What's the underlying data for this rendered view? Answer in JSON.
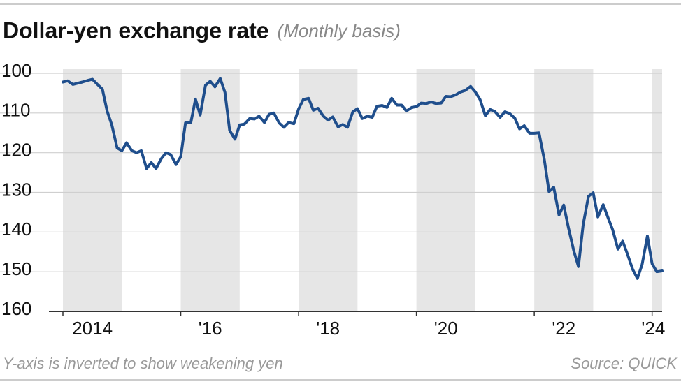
{
  "chart_data": {
    "type": "line",
    "title": "Dollar-yen exchange rate",
    "subtitle": "(Monthly basis)",
    "note": "Y-axis is inverted to show weakening yen",
    "source": "Source: QUICK",
    "color": "#1f4e8c",
    "inverted_y": true,
    "grid": true,
    "band_color": "#e6e6e6",
    "shaded_years": [
      [
        2014,
        2015
      ],
      [
        2016,
        2017
      ],
      [
        2018,
        2019
      ],
      [
        2020,
        2021
      ],
      [
        2022,
        2023
      ],
      [
        2024,
        2025
      ]
    ],
    "xlim": [
      2014,
      2024.17
    ],
    "ylim": [
      100,
      160
    ],
    "yticks": [
      100,
      110,
      120,
      130,
      140,
      150,
      160
    ],
    "xticks": [
      {
        "value": 2014.5,
        "label": "2014"
      },
      {
        "value": 2016.5,
        "label": "'16"
      },
      {
        "value": 2018.5,
        "label": "'18"
      },
      {
        "value": 2020.5,
        "label": "'20"
      },
      {
        "value": 2022.5,
        "label": "'22"
      },
      {
        "value": 2024.02,
        "label": "'24"
      }
    ],
    "x": [
      2014,
      2014.08,
      2014.17,
      2014.25,
      2014.33,
      2014.42,
      2014.5,
      2014.58,
      2014.67,
      2014.75,
      2014.83,
      2014.92,
      2015,
      2015.08,
      2015.17,
      2015.25,
      2015.33,
      2015.42,
      2015.5,
      2015.58,
      2015.67,
      2015.75,
      2015.83,
      2015.92,
      2016,
      2016.08,
      2016.17,
      2016.25,
      2016.33,
      2016.42,
      2016.5,
      2016.58,
      2016.67,
      2016.75,
      2016.83,
      2016.92,
      2017,
      2017.08,
      2017.17,
      2017.25,
      2017.33,
      2017.42,
      2017.5,
      2017.58,
      2017.67,
      2017.75,
      2017.83,
      2017.92,
      2018,
      2018.08,
      2018.17,
      2018.25,
      2018.33,
      2018.42,
      2018.5,
      2018.58,
      2018.67,
      2018.75,
      2018.83,
      2018.92,
      2019,
      2019.08,
      2019.17,
      2019.25,
      2019.33,
      2019.42,
      2019.5,
      2019.58,
      2019.67,
      2019.75,
      2019.83,
      2019.92,
      2020,
      2020.08,
      2020.17,
      2020.25,
      2020.33,
      2020.42,
      2020.5,
      2020.58,
      2020.67,
      2020.75,
      2020.83,
      2020.92,
      2021,
      2021.08,
      2021.17,
      2021.25,
      2021.33,
      2021.42,
      2021.5,
      2021.58,
      2021.67,
      2021.75,
      2021.83,
      2021.92,
      2022,
      2022.08,
      2022.17,
      2022.25,
      2022.33,
      2022.42,
      2022.5,
      2022.58,
      2022.67,
      2022.75,
      2022.83,
      2022.92,
      2023,
      2023.08,
      2023.17,
      2023.25,
      2023.33,
      2023.42,
      2023.5,
      2023.58,
      2023.67,
      2023.75,
      2023.83,
      2023.92,
      2024,
      2024.08,
      2024.17
    ],
    "values": [
      102.2,
      101.9,
      102.8,
      102.5,
      102.2,
      101.8,
      101.5,
      102.7,
      104,
      109.5,
      113,
      118.8,
      119.5,
      117.5,
      119.5,
      120,
      119.5,
      124,
      122.5,
      124,
      121.5,
      120,
      120.5,
      123,
      121,
      112.5,
      112.5,
      106.5,
      110.5,
      103,
      102,
      103.4,
      101.3,
      104.8,
      114.4,
      116.6,
      113,
      112.8,
      111.4,
      111.5,
      110.8,
      112.4,
      110.3,
      110,
      112.5,
      113.6,
      112.4,
      112.7,
      109,
      106.6,
      106.3,
      109.3,
      108.8,
      110.8,
      111.8,
      111,
      113.5,
      112.9,
      113.6,
      109.7,
      108.9,
      111.4,
      110.8,
      111.1,
      108.3,
      108.1,
      108.6,
      106.3,
      108,
      108,
      109.5,
      108.6,
      108.4,
      107.5,
      107.6,
      107.2,
      107.6,
      107.5,
      105.8,
      105.9,
      105.4,
      104.7,
      104.3,
      103.3,
      104.7,
      106.6,
      110.7,
      109.1,
      109.6,
      111.1,
      109.7,
      110.1,
      111.3,
      114,
      113.2,
      115.1,
      115.1,
      115,
      121.7,
      129.8,
      128.7,
      135.7,
      133.2,
      138.9,
      144.7,
      148.7,
      138.1,
      131,
      130.1,
      136.2,
      133.1,
      136.3,
      139.4,
      144.3,
      142.3,
      145.5,
      149.4,
      151.7,
      148.2,
      141,
      148,
      150,
      149.8
    ]
  }
}
